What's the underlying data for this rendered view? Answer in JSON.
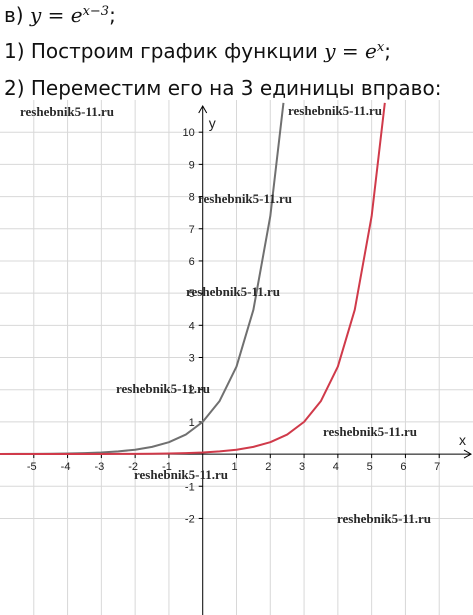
{
  "header": {
    "lines": [
      [
        "в) ",
        "y = e",
        "x−3",
        ";"
      ],
      [
        "1) Построим график функции ",
        "y = e",
        "x",
        ";"
      ],
      [
        "2) Переместим его на 3 единицы вправо:"
      ]
    ]
  },
  "watermark": "reshebnik5-11.ru",
  "chart_data": {
    "type": "line",
    "x_label": "x",
    "y_label": "y",
    "xlim": [
      -6,
      8
    ],
    "ylim": [
      -5,
      11
    ],
    "xticks": [
      -5,
      -4,
      -3,
      -2,
      -1,
      1,
      2,
      3,
      4,
      5,
      6,
      7
    ],
    "yticks": [
      -2,
      -1,
      1,
      2,
      3,
      4,
      5,
      6,
      7,
      8,
      9,
      10
    ],
    "grid": true,
    "series": [
      {
        "color": "#707070",
        "x": [
          -6,
          -5.5,
          -5,
          -4.5,
          -4,
          -3.5,
          -3,
          -2.5,
          -2,
          -1.5,
          -1,
          -0.5,
          0,
          0.5,
          1,
          1.5,
          2,
          2.39
        ],
        "values": [
          0.0025,
          0.0041,
          0.0067,
          0.0111,
          0.0183,
          0.0302,
          0.0498,
          0.0821,
          0.1353,
          0.2231,
          0.3679,
          0.6065,
          1,
          1.6487,
          2.7183,
          4.4817,
          7.3891,
          10.91
        ]
      },
      {
        "color": "#d03a4a",
        "x": [
          -6,
          -3,
          -2.5,
          -2,
          -1.5,
          -1,
          -0.5,
          0,
          0.5,
          1,
          1.5,
          2,
          2.5,
          3,
          3.5,
          4,
          4.5,
          5,
          5.39
        ],
        "values": [
          0.0001,
          0.0025,
          0.0041,
          0.0067,
          0.0111,
          0.0183,
          0.0302,
          0.0498,
          0.0821,
          0.1353,
          0.2231,
          0.3679,
          0.6065,
          1,
          1.6487,
          2.7183,
          4.4817,
          7.3891,
          10.91
        ]
      }
    ]
  }
}
